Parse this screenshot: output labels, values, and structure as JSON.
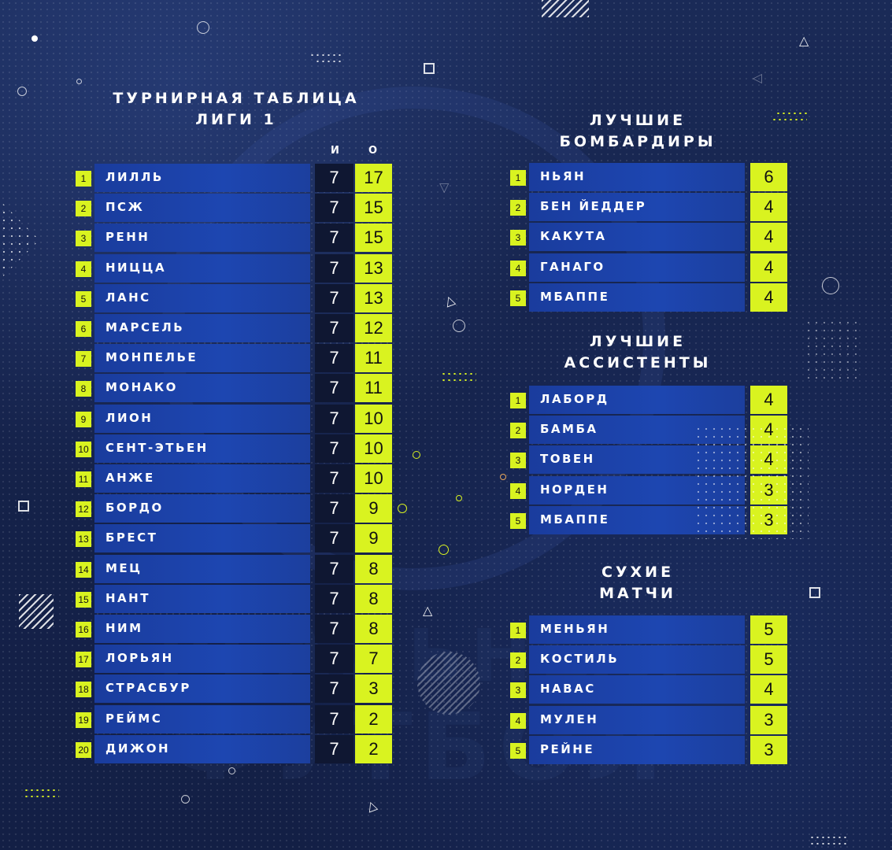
{
  "league_table": {
    "title_line1": "ТУРНИРНАЯ ТАБЛИЦА",
    "title_line2": "ЛИГИ 1",
    "col_games": "И",
    "col_points": "О",
    "rows": [
      {
        "rank": "1",
        "team": "ЛИЛЛЬ",
        "games": "7",
        "points": "17"
      },
      {
        "rank": "2",
        "team": "ПСЖ",
        "games": "7",
        "points": "15"
      },
      {
        "rank": "3",
        "team": "РЕНН",
        "games": "7",
        "points": "15"
      },
      {
        "rank": "4",
        "team": "НИЦЦА",
        "games": "7",
        "points": "13"
      },
      {
        "rank": "5",
        "team": "ЛАНС",
        "games": "7",
        "points": "13"
      },
      {
        "rank": "6",
        "team": "МАРСЕЛЬ",
        "games": "7",
        "points": "12"
      },
      {
        "rank": "7",
        "team": "МОНПЕЛЬЕ",
        "games": "7",
        "points": "11"
      },
      {
        "rank": "8",
        "team": "МОНАКО",
        "games": "7",
        "points": "11"
      },
      {
        "rank": "9",
        "team": "ЛИОН",
        "games": "7",
        "points": "10"
      },
      {
        "rank": "10",
        "team": "СЕНТ-ЭТЬЕН",
        "games": "7",
        "points": "10"
      },
      {
        "rank": "11",
        "team": "АНЖЕ",
        "games": "7",
        "points": "10"
      },
      {
        "rank": "12",
        "team": "БОРДО",
        "games": "7",
        "points": "9"
      },
      {
        "rank": "13",
        "team": "БРЕСТ",
        "games": "7",
        "points": "9"
      },
      {
        "rank": "14",
        "team": "МЕЦ",
        "games": "7",
        "points": "8"
      },
      {
        "rank": "15",
        "team": "НАНТ",
        "games": "7",
        "points": "8"
      },
      {
        "rank": "16",
        "team": "НИМ",
        "games": "7",
        "points": "8"
      },
      {
        "rank": "17",
        "team": "ЛОРЬЯН",
        "games": "7",
        "points": "7"
      },
      {
        "rank": "18",
        "team": "СТРАСБУР",
        "games": "7",
        "points": "3"
      },
      {
        "rank": "19",
        "team": "РЕЙМС",
        "games": "7",
        "points": "2"
      },
      {
        "rank": "20",
        "team": "ДИЖОН",
        "games": "7",
        "points": "2"
      }
    ]
  },
  "scorers": {
    "title_line1": "ЛУЧШИЕ",
    "title_line2": "БОМБАРДИРЫ",
    "rows": [
      {
        "rank": "1",
        "name": "НЬЯН",
        "value": "6"
      },
      {
        "rank": "2",
        "name": "БЕН ЙЕДДЕР",
        "value": "4"
      },
      {
        "rank": "3",
        "name": "КАКУТА",
        "value": "4"
      },
      {
        "rank": "4",
        "name": "ГАНАГО",
        "value": "4"
      },
      {
        "rank": "5",
        "name": "МБАППЕ",
        "value": "4"
      }
    ]
  },
  "assists": {
    "title_line1": "ЛУЧШИЕ",
    "title_line2": "АССИСТЕНТЫ",
    "rows": [
      {
        "rank": "1",
        "name": "ЛАБОРД",
        "value": "4"
      },
      {
        "rank": "2",
        "name": "БАМБА",
        "value": "4"
      },
      {
        "rank": "3",
        "name": "ТОВЕН",
        "value": "4"
      },
      {
        "rank": "4",
        "name": "НОРДЕН",
        "value": "3"
      },
      {
        "rank": "5",
        "name": "МБАППЕ",
        "value": "3"
      }
    ]
  },
  "clean_sheets": {
    "title_line1": "СУХИЕ",
    "title_line2": "МАТЧИ",
    "rows": [
      {
        "rank": "1",
        "name": "МЕНЬЯН",
        "value": "5"
      },
      {
        "rank": "2",
        "name": "КОСТИЛЬ",
        "value": "5"
      },
      {
        "rank": "3",
        "name": "НАВАС",
        "value": "4"
      },
      {
        "rank": "4",
        "name": "МУЛЕН",
        "value": "3"
      },
      {
        "rank": "5",
        "name": "РЕЙНЕ",
        "value": "3"
      }
    ]
  },
  "watermark": {
    "line1": "РЕАЛЬНЫЙ",
    "line2": "ФУТБОЛ"
  },
  "colors": {
    "accent": "#d9f320",
    "bar": "#1d46b1",
    "dark_cell": "#0f1732",
    "background": "#16244d"
  }
}
